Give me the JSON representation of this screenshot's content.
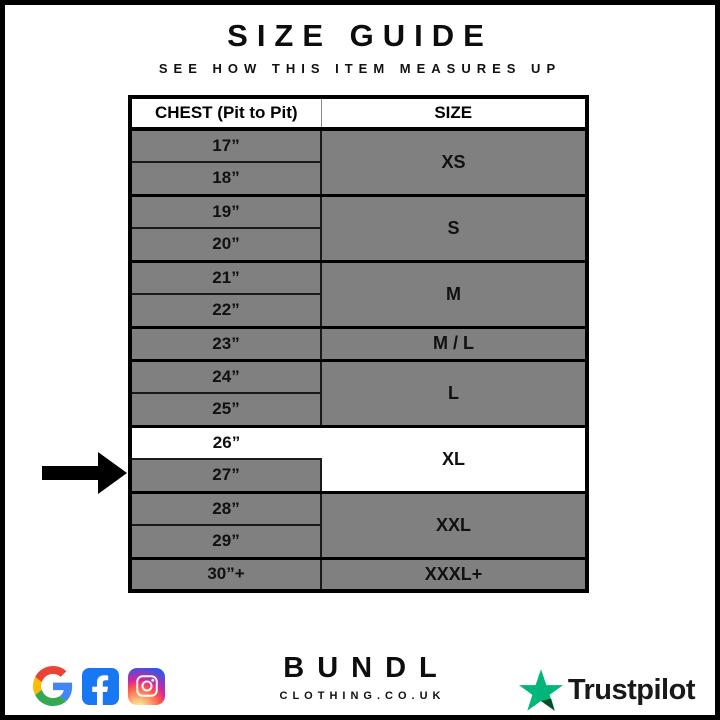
{
  "header": {
    "title": "SIZE GUIDE",
    "subtitle": "SEE HOW THIS ITEM MEASURES UP"
  },
  "table": {
    "headers": [
      "CHEST (Pit to Pit)",
      "SIZE"
    ],
    "groups": [
      {
        "size": "XS",
        "chest": [
          "17”",
          "18”"
        ],
        "highlighted": false
      },
      {
        "size": "S",
        "chest": [
          "19”",
          "20”"
        ],
        "highlighted": false
      },
      {
        "size": "M",
        "chest": [
          "21”",
          "22”"
        ],
        "highlighted": false
      },
      {
        "size": "M / L",
        "chest": [
          "23”"
        ],
        "highlighted": false
      },
      {
        "size": "L",
        "chest": [
          "24”",
          "25”"
        ],
        "highlighted": false
      },
      {
        "size": "XL",
        "chest": [
          "26”",
          "27”"
        ],
        "highlighted": true,
        "highlighted_chest": "26”"
      },
      {
        "size": "XXL",
        "chest": [
          "28”",
          "29”"
        ],
        "highlighted": false
      },
      {
        "size": "XXXL+",
        "chest": [
          "30”+"
        ],
        "highlighted": false
      }
    ]
  },
  "annotation": {
    "type": "arrow-right",
    "points_to": "26”"
  },
  "footer": {
    "brand_name": "BUNDL",
    "brand_domain": "CLOTHING.CO.UK",
    "social_icons": [
      "google",
      "facebook",
      "instagram"
    ],
    "trustpilot_label": "Trustpilot"
  },
  "colors": {
    "table_gray": "#808080",
    "highlight_white": "#ffffff",
    "trustpilot_green": "#00B67A",
    "trustpilot_shadow": "#005128",
    "facebook_blue": "#1877F2",
    "google_palette": [
      "#EA4335",
      "#4285F4",
      "#FBBC05",
      "#34A853"
    ]
  }
}
